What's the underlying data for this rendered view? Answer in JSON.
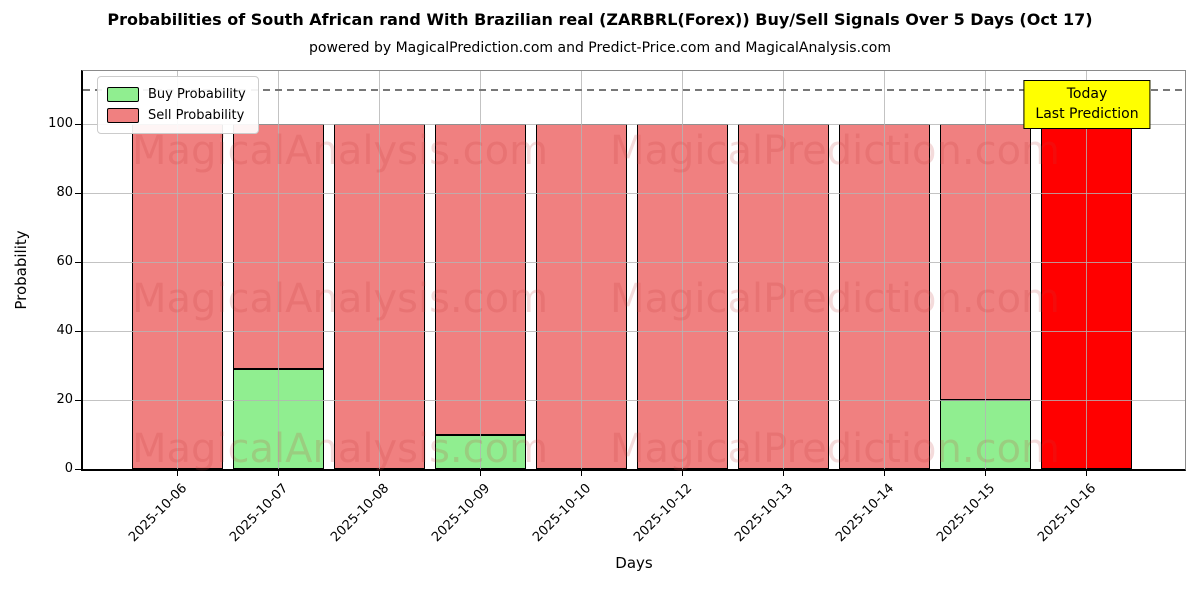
{
  "annotation": {
    "line1": "Today",
    "line2": "Last Prediction",
    "bg_color": "#FFFF00",
    "border_color": "#000000"
  },
  "watermarks": {
    "left_text": "MagicalAnalysis.com",
    "right_text": "MagicalPrediction.com",
    "color": "#C83C3C"
  },
  "chart_data": {
    "type": "bar",
    "stacked": true,
    "title": "Probabilities of South African rand With Brazilian real (ZARBRL(Forex)) Buy/Sell Signals Over 5 Days (Oct 17)",
    "subtitle": "powered by MagicalPrediction.com and Predict-Price.com and MagicalAnalysis.com",
    "xlabel": "Days",
    "ylabel": "Probability",
    "categories": [
      "2025-10-06",
      "2025-10-07",
      "2025-10-08",
      "2025-10-09",
      "2025-10-10",
      "2025-10-12",
      "2025-10-13",
      "2025-10-14",
      "2025-10-15",
      "2025-10-16"
    ],
    "series": [
      {
        "name": "Buy Probability",
        "color": "#90EE90",
        "values": [
          0,
          29,
          0,
          10,
          0,
          0,
          0,
          0,
          20,
          0
        ]
      },
      {
        "name": "Sell Probability",
        "color": "#F08080",
        "values": [
          100,
          71,
          100,
          90,
          100,
          100,
          100,
          100,
          80,
          100
        ]
      }
    ],
    "today_index": 9,
    "today_color": "#FF0000",
    "bar_edge_color": "#000000",
    "ylim": [
      0,
      115
    ],
    "yticks": [
      0,
      20,
      40,
      60,
      80,
      100
    ],
    "dashed_line_y": 110,
    "grid": true,
    "legend_position": "upper left"
  }
}
